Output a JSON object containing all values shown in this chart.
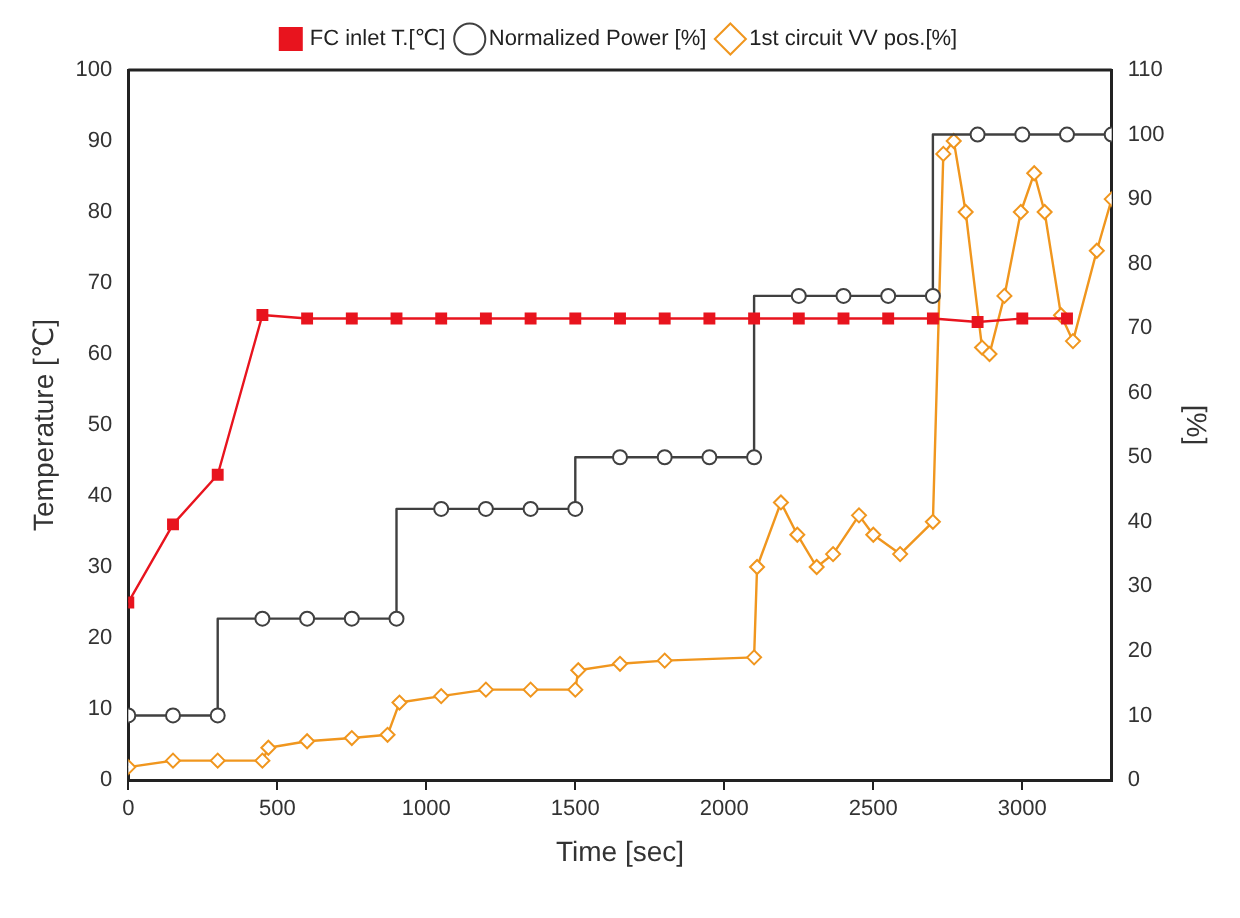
{
  "chart_data": {
    "type": "line",
    "xlabel": "Time [sec]",
    "ylabel": "Temperature [℃]",
    "y2label": "[%]",
    "xlim": [
      0,
      3300
    ],
    "xticks": [
      0,
      500,
      1000,
      1500,
      2000,
      2500,
      3000
    ],
    "ylim": [
      0,
      100
    ],
    "yticks": [
      0,
      10,
      20,
      30,
      40,
      50,
      60,
      70,
      80,
      90,
      100
    ],
    "y2lim": [
      0,
      110
    ],
    "y2ticks": [
      0,
      10,
      20,
      30,
      40,
      50,
      60,
      70,
      80,
      90,
      100,
      110
    ],
    "grid": false,
    "legend": "top",
    "line_style": "solid",
    "series": [
      {
        "name": "FC inlet T.[℃]",
        "color": "#e8141e",
        "marker": "square",
        "x": [
          0,
          150,
          300,
          450,
          600,
          750,
          900,
          1050,
          1200,
          1350,
          1500,
          1650,
          1800,
          1950,
          2100,
          2250,
          2400,
          2550,
          2700,
          2850,
          3000,
          3150
        ],
        "values": [
          25,
          36,
          43,
          65.5,
          65,
          65,
          65,
          65,
          65,
          65,
          65,
          65,
          65,
          65,
          65,
          65,
          65,
          65,
          65,
          64.5,
          65,
          65
        ]
      },
      {
        "name": "Normalized Power [%]",
        "color": "#404040",
        "type": "step",
        "axis": "y2",
        "marker": "circle",
        "x": [
          0,
          150,
          300,
          450,
          600,
          750,
          900,
          1050,
          1200,
          1350,
          1500,
          1650,
          1800,
          1950,
          2100,
          2250,
          2400,
          2550,
          2700,
          2850,
          3000,
          3150,
          3300
        ],
        "values": [
          10,
          10,
          10,
          25,
          25,
          25,
          25,
          42,
          42,
          42,
          42,
          50,
          50,
          50,
          50,
          75,
          75,
          75,
          75,
          100,
          100,
          100,
          100
        ]
      },
      {
        "name": "1st circuit VV pos.[%]",
        "color": "#f0961e",
        "axis": "y2",
        "marker": "diamond",
        "x": [
          0,
          150,
          300,
          450,
          470,
          600,
          750,
          870,
          910,
          1050,
          1200,
          1350,
          1500,
          1510,
          1650,
          1800,
          2100,
          2110,
          2190,
          2245,
          2310,
          2365,
          2452,
          2500,
          2590,
          2700,
          2735,
          2770,
          2810,
          2865,
          2890,
          2940,
          2995,
          3040,
          3075,
          3130,
          3170,
          3250,
          3300
        ],
        "values": [
          2,
          3,
          3,
          3,
          5,
          6,
          6.5,
          7,
          12,
          13,
          14,
          14,
          14,
          17,
          18,
          18.5,
          19,
          33,
          43,
          38,
          33,
          35,
          41,
          38,
          35,
          40,
          97,
          99,
          88,
          67,
          66,
          75,
          88,
          94,
          88,
          72,
          68,
          82,
          90
        ]
      }
    ]
  }
}
